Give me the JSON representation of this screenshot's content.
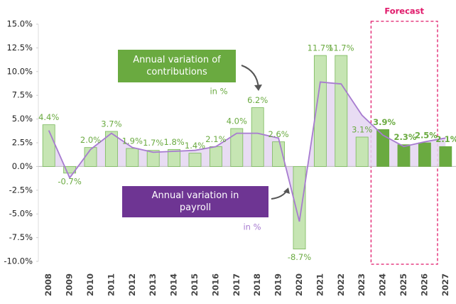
{
  "chart_data": {
    "type": "bar_line",
    "categories": [
      "2008",
      "2009",
      "2010",
      "2011",
      "2012",
      "2013",
      "2014",
      "2015",
      "2016",
      "2017",
      "2018",
      "2019",
      "2020",
      "2021",
      "2022",
      "2023",
      "2024",
      "2025",
      "2026",
      "2027"
    ],
    "series": [
      {
        "name": "Annual variation of contributions",
        "unit_label": "in %",
        "color": "#c6e5b3",
        "edge": "#7ab85a",
        "forecast_color": "#6aaa40",
        "values": [
          4.4,
          -0.7,
          2.0,
          3.7,
          1.9,
          1.7,
          1.8,
          1.4,
          2.1,
          4.0,
          6.2,
          2.6,
          -8.7,
          11.7,
          11.7,
          3.1,
          3.9,
          2.3,
          2.5,
          2.1
        ],
        "value_labels": [
          "4.4%",
          "-0.7%",
          "2.0%",
          "3.7%",
          "1.9%",
          "1.7%",
          "1.8%",
          "1.4%",
          "2.1%",
          "4.0%",
          "6.2%",
          "2.6%",
          "-8.7%",
          "11.7%",
          "11.7%",
          "3.1%",
          "3.9%",
          "2.3%",
          "2.5%",
          "2.1%"
        ]
      },
      {
        "name": "Annual variation in payroll",
        "unit_label": "in %",
        "color": "#a77bd0",
        "fill": "#e4d6f1",
        "box_color": "#6e3593",
        "values": [
          3.8,
          -1.2,
          1.8,
          3.5,
          2.0,
          1.5,
          1.6,
          1.7,
          2.1,
          3.5,
          3.5,
          3.0,
          -5.8,
          8.9,
          8.7,
          5.4,
          3.3,
          2.1,
          2.6,
          3.0
        ]
      }
    ],
    "forecast_label": "Forecast",
    "forecast_start": "2024",
    "forecast_color": "#e0196a",
    "ylim": [
      -10,
      15
    ],
    "yticks": [
      {
        "value": -10,
        "label": "-10.0%"
      },
      {
        "value": -7.5,
        "label": "-7.5%"
      },
      {
        "value": -5,
        "label": "-5.0%"
      },
      {
        "value": -2.5,
        "label": "-2.5%"
      },
      {
        "value": 0,
        "label": "0.0%"
      },
      {
        "value": 2.5,
        "label": "2.5%"
      },
      {
        "value": 5,
        "label": "5.0%"
      },
      {
        "value": 7.5,
        "label": "7.5%"
      },
      {
        "value": 10,
        "label": "10.0%"
      },
      {
        "value": 12.5,
        "label": "12.5%"
      },
      {
        "value": 15,
        "label": "15.0%"
      }
    ]
  }
}
